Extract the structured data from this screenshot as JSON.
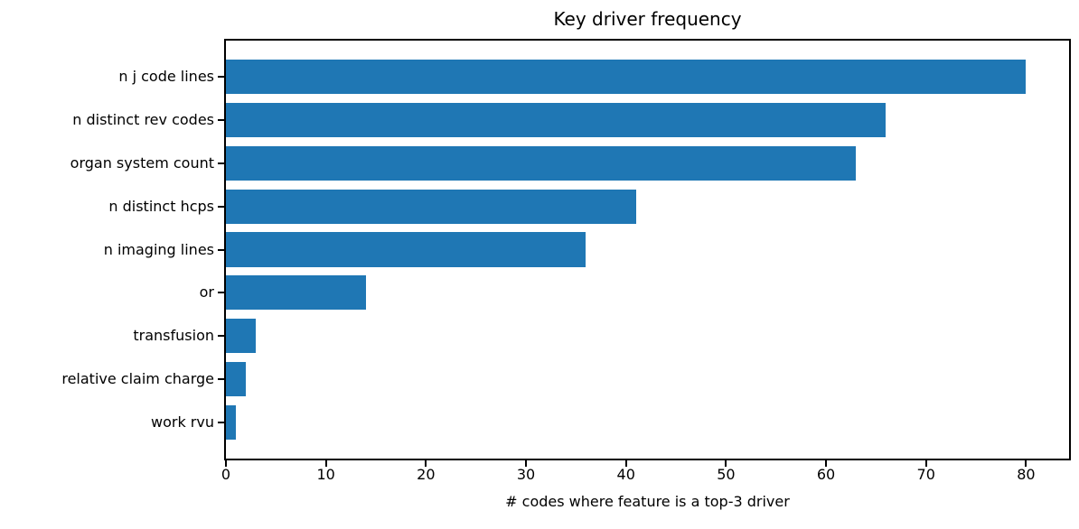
{
  "chart_data": {
    "type": "bar",
    "orientation": "horizontal",
    "title": "Key driver frequency",
    "xlabel": "# codes where feature is a top-3 driver",
    "ylabel": "",
    "categories": [
      "n j code lines",
      "n distinct rev codes",
      "organ system count",
      "n distinct hcps",
      "n imaging lines",
      "or",
      "transfusion",
      "relative claim charge",
      "work rvu"
    ],
    "values": [
      80,
      66,
      63,
      41,
      36,
      14,
      3,
      2,
      1
    ],
    "xticks": [
      0,
      10,
      20,
      30,
      40,
      50,
      60,
      70,
      80
    ],
    "xlim": [
      0,
      84.3
    ],
    "bar_color": "#1f77b4",
    "bar_height_fraction": 0.8,
    "background_color": "#ffffff",
    "spine_color": "#000000",
    "grid": false,
    "legend": null
  }
}
